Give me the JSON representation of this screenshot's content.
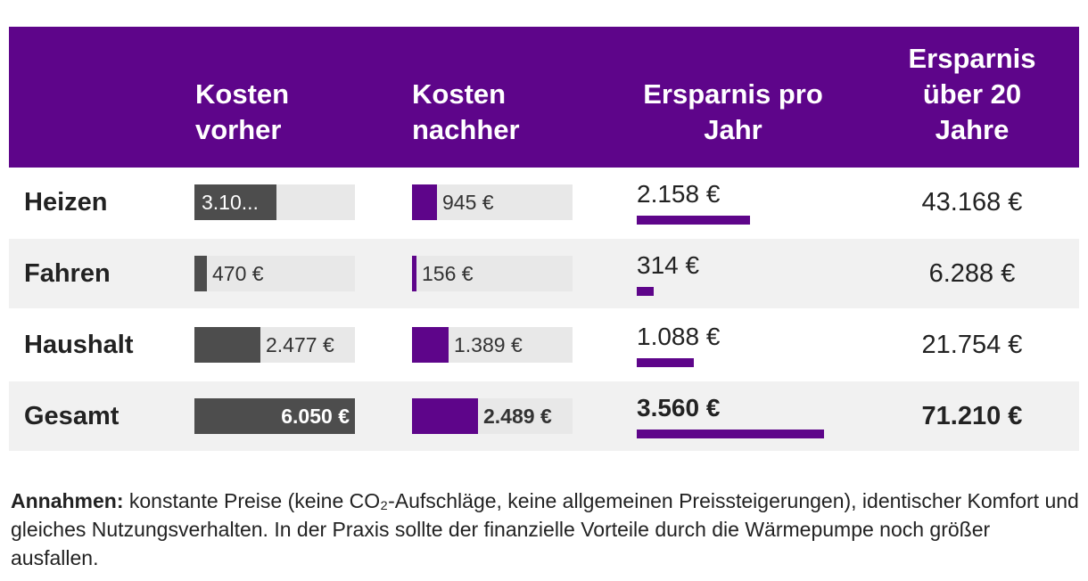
{
  "chart_data": {
    "type": "table",
    "columns": [
      "",
      "Kosten vorher",
      "Kosten nachher",
      "Ersparnis pro Jahr",
      "Ersparnis über 20 Jahre"
    ],
    "header_lines": {
      "vorher": [
        "Kosten",
        "vorher"
      ],
      "nachher": [
        "Kosten",
        "nachher"
      ],
      "jahr": [
        "Ersparnis pro",
        "Jahr"
      ],
      "zwanzig": [
        "Ersparnis",
        "über 20",
        "Jahre"
      ]
    },
    "rows": [
      {
        "label": "Heizen",
        "vorher": 3103,
        "vorher_label": "3.10...",
        "nachher": 945,
        "nachher_label": "945 €",
        "ersparnis": 2158,
        "ersparnis_label": "2.158 €",
        "ersparnis20_label": "43.168 €"
      },
      {
        "label": "Fahren",
        "vorher": 470,
        "vorher_label": "470 €",
        "nachher": 156,
        "nachher_label": "156 €",
        "ersparnis": 314,
        "ersparnis_label": "314 €",
        "ersparnis20_label": "6.288 €"
      },
      {
        "label": "Haushalt",
        "vorher": 2477,
        "vorher_label": "2.477 €",
        "nachher": 1389,
        "nachher_label": "1.389 €",
        "ersparnis": 1088,
        "ersparnis_label": "1.088 €",
        "ersparnis20_label": "21.754 €"
      },
      {
        "label": "Gesamt",
        "vorher": 6050,
        "vorher_label": "6.050 €",
        "nachher": 2489,
        "nachher_label": "2.489 €",
        "ersparnis": 3560,
        "ersparnis_label": "3.560 €",
        "ersparnis20_label": "71.210 €",
        "total": true
      }
    ],
    "scale_max_costs": 6050,
    "scale_max_savings": 3560,
    "colors": {
      "header_bg": "#5e058a",
      "cost_before_bar": "#4d4d4d",
      "cost_after_bar": "#5e058a",
      "savings_bar": "#5e058a",
      "track": "#e8e8e8"
    }
  },
  "note": {
    "bold": "Annahmen:",
    "text": "konstante Preise (keine CO₂-Aufschläge, keine allgemeinen Preissteigerungen), identischer Komfort und gleiches Nutzungsverhalten. In der Praxis sollte der finanzielle Vorteile durch die Wärmepumpe noch größer ausfallen."
  }
}
